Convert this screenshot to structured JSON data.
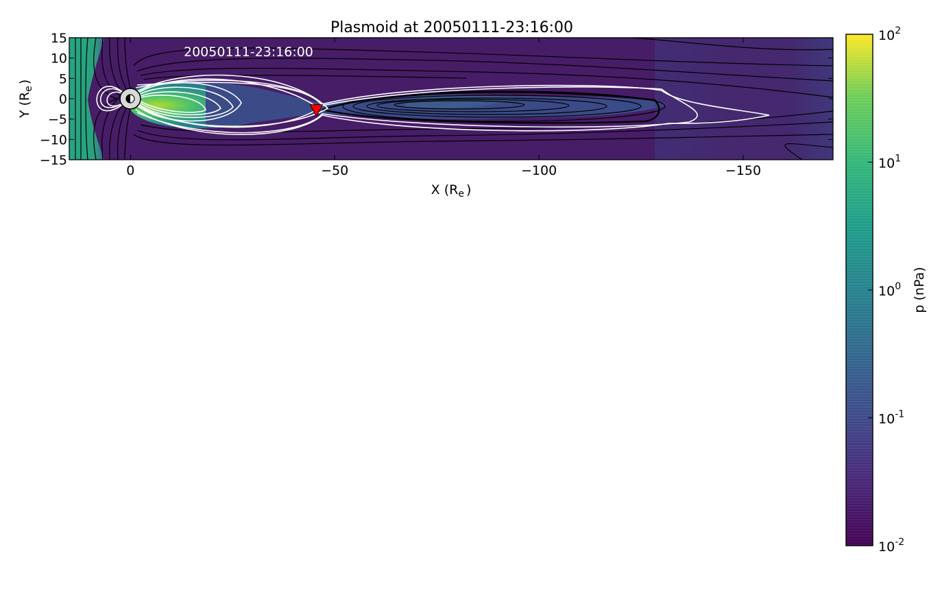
{
  "chart_data": {
    "type": "heatmap",
    "title": "Plasmoid at 20050111-23:16:00",
    "annotation": "20050111-23:16:00",
    "xlabel": {
      "main": "X (R",
      "sub": "e",
      "tail": ")"
    },
    "ylabel": {
      "main": "Y (R",
      "sub": "e",
      "tail": ")"
    },
    "xlim": [
      15,
      -172
    ],
    "ylim": [
      -15,
      15
    ],
    "x_ticks": [
      {
        "value": 0,
        "label": "0"
      },
      {
        "value": -50,
        "label": "−50"
      },
      {
        "value": -100,
        "label": "−100"
      },
      {
        "value": -150,
        "label": "−150"
      }
    ],
    "y_ticks": [
      {
        "value": 15,
        "label": "15"
      },
      {
        "value": 10,
        "label": "10"
      },
      {
        "value": 5,
        "label": "5"
      },
      {
        "value": 0,
        "label": "0"
      },
      {
        "value": -5,
        "label": "−5"
      },
      {
        "value": -10,
        "label": "−10"
      },
      {
        "value": -15,
        "label": "−15"
      }
    ],
    "colorbar": {
      "label": "p (nPa)",
      "scale": "log",
      "range": [
        0.01,
        100
      ],
      "colormap": "viridis",
      "ticks": [
        {
          "exp": 2,
          "base": "10",
          "power": "2"
        },
        {
          "exp": 1,
          "base": "10",
          "power": "1"
        },
        {
          "exp": 0,
          "base": "10",
          "power": "0"
        },
        {
          "exp": -1,
          "base": "10",
          "power": "-1"
        },
        {
          "exp": -2,
          "base": "10",
          "power": "-2"
        }
      ]
    },
    "marker": {
      "shape": "triangle-down",
      "color": "#ff0000",
      "x": -45.5,
      "y": -3
    },
    "earth": {
      "x": 0,
      "y": 0
    },
    "field_lines": {
      "closed": "#ffffff",
      "open": "#000000"
    }
  }
}
